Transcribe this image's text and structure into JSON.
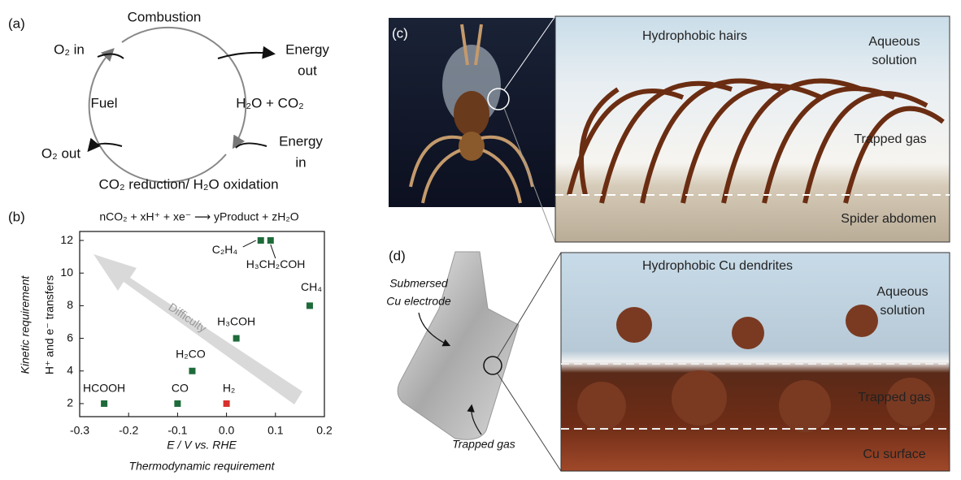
{
  "panel_a": {
    "label": "(a)",
    "combustion": "Combustion",
    "o2_in": "O₂ in",
    "energy_out": [
      "Energy",
      "out"
    ],
    "fuel": "Fuel",
    "products": "H₂O + CO₂",
    "energy_in": [
      "Energy",
      "in"
    ],
    "o2_out": "O₂ out",
    "reduction": "CO₂ reduction/ H₂O oxidation"
  },
  "chart_data": {
    "type": "scatter",
    "title": "(b)",
    "subtitle": "nCO₂ + xH⁺ + xe⁻ ⟶ yProduct + zH₂O",
    "x_label": "E / V vs. RHE",
    "x_label_2": "Thermodynamic requirement",
    "y_label": "H⁺ and e⁻ transfers",
    "y_label_2": "Kinetic requirement",
    "annotation": "Difficulty",
    "point_labels": [
      "HCOOH",
      "CO",
      "H₂",
      "H₂CO",
      "H₃COH",
      "C₂H₄",
      "H₃CH₂COH",
      "CH₄"
    ],
    "x": [
      -0.25,
      -0.1,
      0.0,
      -0.07,
      0.02,
      0.07,
      0.09,
      0.17
    ],
    "values": [
      2,
      2,
      2,
      4,
      6,
      12,
      12,
      8
    ],
    "colors": [
      "#1e6b3a",
      "#1e6b3a",
      "#d8302c",
      "#1e6b3a",
      "#1e6b3a",
      "#1e6b3a",
      "#1e6b3a",
      "#1e6b3a"
    ],
    "xlim": [
      -0.3,
      0.2
    ],
    "xticks": [
      -0.3,
      -0.2,
      -0.1,
      {
        "value": 0,
        "label": "0.0"
      },
      0.1,
      0.2
    ],
    "ylim": [
      1.2,
      12.55
    ],
    "yticks": [
      2,
      4,
      6,
      8,
      10,
      12
    ]
  },
  "panel_c": {
    "label": "(c)",
    "hairs": "Hydrophobic hairs",
    "aqueous": [
      "Aqueous",
      "solution"
    ],
    "gas": "Trapped gas",
    "abdomen": "Spider abdomen"
  },
  "panel_d": {
    "label": "(d)",
    "electrode": [
      "Submersed",
      "Cu electrode"
    ],
    "electrode_gas": "Trapped gas",
    "dendrites": "Hydrophobic Cu dendrites",
    "aqueous": [
      "Aqueous",
      "solution"
    ],
    "gas": "Trapped gas",
    "surface": "Cu  surface"
  }
}
